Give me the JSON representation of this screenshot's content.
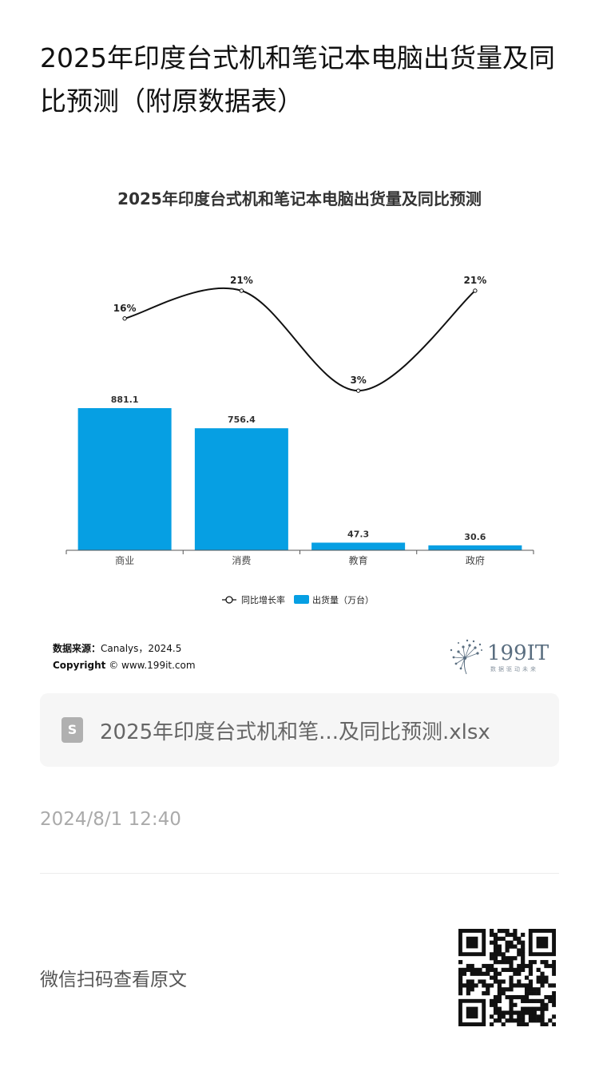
{
  "article": {
    "title": "2025年印度台式机和笔记本电脑出货量及同比预测（附原数据表）"
  },
  "chart_data": {
    "type": "bar",
    "title": "2025年印度台式机和笔记本电脑出货量及同比预测",
    "categories": [
      "商业",
      "消费",
      "教育",
      "政府"
    ],
    "series": [
      {
        "name": "出货量（万台）",
        "type": "bar",
        "values": [
          881.1,
          756.4,
          47.3,
          30.6
        ],
        "labels": [
          "881.1",
          "756.4",
          "47.3",
          "30.6"
        ],
        "color": "#069fe3"
      },
      {
        "name": "同比增长率",
        "type": "line",
        "values": [
          16,
          21,
          3,
          21
        ],
        "labels": [
          "16%",
          "21%",
          "3%",
          "21%"
        ],
        "color": "#111111"
      }
    ],
    "legend": [
      {
        "label": "同比增长率",
        "kind": "line"
      },
      {
        "label": "出货量（万台）",
        "kind": "bar"
      }
    ],
    "legend_position": "bottom",
    "grid": false
  },
  "source": {
    "label": "数据来源：",
    "text": "Canalys，2024.5",
    "copyright_label": "Copyright",
    "copyright_text": "© www.199it.com"
  },
  "brand": {
    "name": "199IT",
    "tagline": "数据驱动未来",
    "color": "#5a6e80"
  },
  "attachment": {
    "icon": "spreadsheet-file-icon",
    "filename": "2025年印度台式机和笔...及同比预测.xlsx"
  },
  "meta": {
    "date": "2024/8/1 12:40"
  },
  "footer": {
    "wechat_text": "微信扫码查看原文",
    "qr_icon": "qr-code-icon"
  }
}
